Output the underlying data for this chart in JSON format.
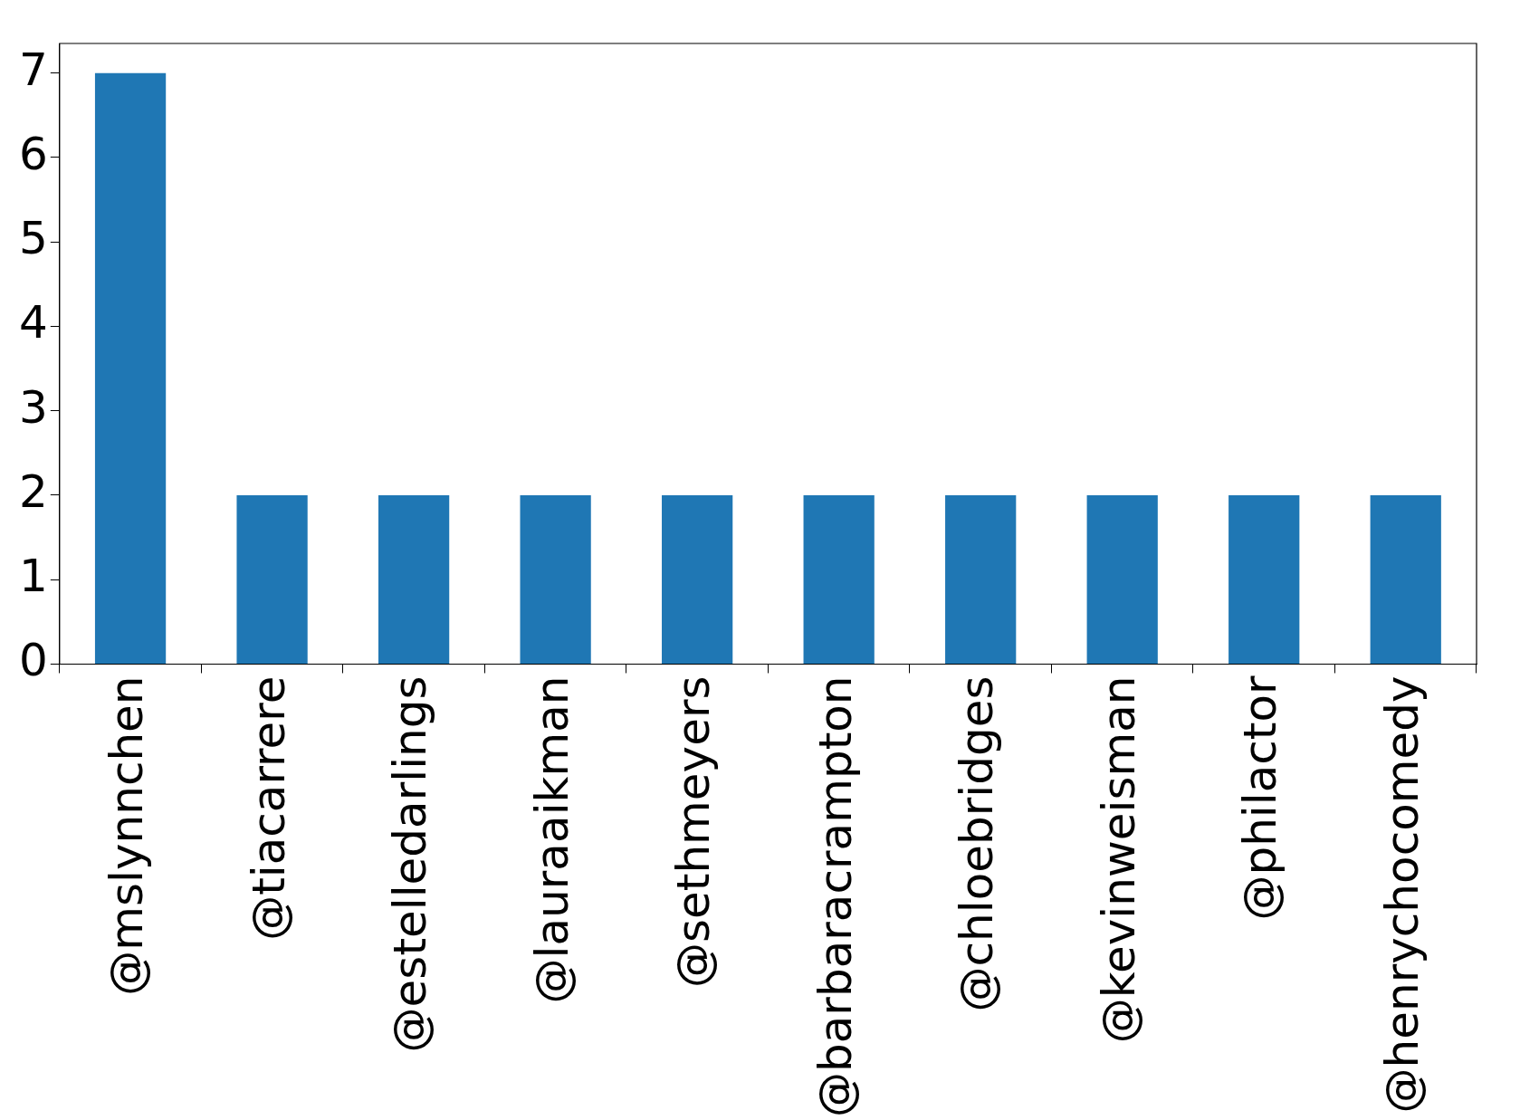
{
  "chart_data": {
    "type": "bar",
    "categories": [
      "@mslynnchen",
      "@tiacarrere",
      "@estelledarlings",
      "@lauraaikman",
      "@sethmeyers",
      "@barbaracrampton",
      "@chloebridges",
      "@kevinweisman",
      "@philactor",
      "@henrychocomedy"
    ],
    "values": [
      7,
      2,
      2,
      2,
      2,
      2,
      2,
      2,
      2,
      2
    ],
    "color": "#1f77b4",
    "ylim": [
      0,
      7.35
    ],
    "yticks": [
      0,
      1,
      2,
      3,
      4,
      5,
      6,
      7
    ],
    "grid": false,
    "legend": false
  }
}
